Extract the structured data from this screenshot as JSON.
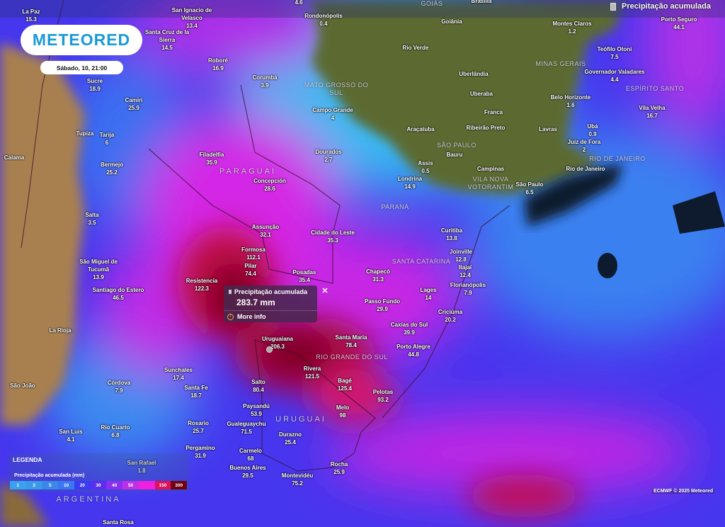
{
  "header": {
    "layer_title": "Precipitação acumulada",
    "layer_icon": "rain-gauge-icon"
  },
  "logo": {
    "text": "METEORED"
  },
  "datetime": "Sábado, 10, 21:00",
  "popup": {
    "title": "Precipitação acumulada",
    "value": "283.7 mm",
    "more_info": "More info",
    "close": "✕"
  },
  "legend": {
    "title": "LEGENDA",
    "subtitle": "Precipitação acumulada (mm)",
    "steps": [
      {
        "label": "1",
        "color": "#3aa0f0"
      },
      {
        "label": "3",
        "color": "#3a9ae8"
      },
      {
        "label": "5",
        "color": "#3a88e8"
      },
      {
        "label": "10",
        "color": "#3a78f0"
      },
      {
        "label": "20",
        "color": "#3a3cf0"
      },
      {
        "label": "30",
        "color": "#5a2ff0"
      },
      {
        "label": "40",
        "color": "#8a2ff0"
      },
      {
        "label": "50",
        "color": "#c02fe8"
      },
      {
        "label": "",
        "color": "#f020e0"
      },
      {
        "label": "150",
        "color": "#e0105a"
      },
      {
        "label": "300",
        "color": "#700010"
      }
    ]
  },
  "credit": "ECMWF © 2025 Meteored",
  "regions": [
    "GOIÁS",
    "MATO GROSSO DO\nSUL",
    "SÃO PAULO",
    "MINAS GERAIS",
    "ESPÍRITO SANTO",
    "RIO DE JANEIRO",
    "VILA NOVA\nVOTORANTIM",
    "PARANÁ",
    "SANTA CATARINA",
    "RIO GRANDE DO SUL",
    "PARAGUAI",
    "URUGUAI",
    "ARGENTINA"
  ],
  "cities": [
    {
      "name": "La Paz",
      "value": "15.3"
    },
    {
      "name": "San Ignacio de\nVelasco",
      "value": "13.4"
    },
    {
      "name": "",
      "value": "4.6"
    },
    {
      "name": "Rondonópolis",
      "value": "0.4"
    },
    {
      "name": "Brasília",
      "value": ""
    },
    {
      "name": "Goiânia",
      "value": ""
    },
    {
      "name": "Rio Verde",
      "value": ""
    },
    {
      "name": "Uberlândia",
      "value": ""
    },
    {
      "name": "Uberaba",
      "value": ""
    },
    {
      "name": "Franca",
      "value": ""
    },
    {
      "name": "Ribeirão Preto",
      "value": ""
    },
    {
      "name": "Lavras",
      "value": ""
    },
    {
      "name": "Araçatuba",
      "value": ""
    },
    {
      "name": "Bauru",
      "value": ""
    },
    {
      "name": "Assis",
      "value": "0.5"
    },
    {
      "name": "Campinas",
      "value": ""
    },
    {
      "name": "Londrina",
      "value": "14.9"
    },
    {
      "name": "São Paulo",
      "value": "6.5"
    },
    {
      "name": "Rio de Janeiro",
      "value": ""
    },
    {
      "name": "Juiz de Fora",
      "value": "2"
    },
    {
      "name": "Ubá",
      "value": "0.9"
    },
    {
      "name": "Belo Horizonte",
      "value": "1.6"
    },
    {
      "name": "Montes Claros",
      "value": "1.2"
    },
    {
      "name": "Teófilo Otoni",
      "value": "7.5"
    },
    {
      "name": "Governador Valadares",
      "value": "4.4"
    },
    {
      "name": "Vila Velha",
      "value": "16.7"
    },
    {
      "name": "Porto Seguro",
      "value": "44.1"
    },
    {
      "name": "Campo Grande",
      "value": "4"
    },
    {
      "name": "Dourados",
      "value": "2.7"
    },
    {
      "name": "Curitiba",
      "value": "13.8"
    },
    {
      "name": "Joinville",
      "value": "12.8"
    },
    {
      "name": "Itajaí",
      "value": "12.4"
    },
    {
      "name": "Florianópolis",
      "value": "7.9"
    },
    {
      "name": "Chapecó",
      "value": "31.3"
    },
    {
      "name": "Lages",
      "value": "14"
    },
    {
      "name": "Passo Fundo",
      "value": "29.9"
    },
    {
      "name": "Criciúma",
      "value": "20.2"
    },
    {
      "name": "Caxias do Sul",
      "value": "39.9"
    },
    {
      "name": "Porto Alegre",
      "value": "44.8"
    },
    {
      "name": "Santa Maria",
      "value": "78.4"
    },
    {
      "name": "Uruguaiana",
      "value": "206.3"
    },
    {
      "name": "Rivera",
      "value": "121.5"
    },
    {
      "name": "Bagé",
      "value": "125.4"
    },
    {
      "name": "Pelotas",
      "value": "93.2"
    },
    {
      "name": "Melo",
      "value": "98"
    },
    {
      "name": "Salto",
      "value": "80.4"
    },
    {
      "name": "Paysandú",
      "value": "53.9"
    },
    {
      "name": "Gualeguaychu",
      "value": "71.5"
    },
    {
      "name": "Durazno",
      "value": "25.4"
    },
    {
      "name": "Carmelo",
      "value": "68"
    },
    {
      "name": "Buenos Aires",
      "value": "29.5"
    },
    {
      "name": "Rocha",
      "value": "25.9"
    },
    {
      "name": "Montevidéu",
      "value": "75.2"
    },
    {
      "name": "Pergamino",
      "value": "31.9"
    },
    {
      "name": "Rosario",
      "value": "25.7"
    },
    {
      "name": "Santa Fe",
      "value": "18.7"
    },
    {
      "name": "Sunchales",
      "value": "17.4"
    },
    {
      "name": "Córdova",
      "value": "7.9"
    },
    {
      "name": "Rio Cuarto",
      "value": "6.8"
    },
    {
      "name": "San Luis",
      "value": "4.1"
    },
    {
      "name": "São João",
      "value": ""
    },
    {
      "name": "La Rioja",
      "value": ""
    },
    {
      "name": "Santiago do Estero",
      "value": "46.5"
    },
    {
      "name": "São Miguel de\nTucumã",
      "value": "13.9"
    },
    {
      "name": "Salta",
      "value": "3.5"
    },
    {
      "name": "Bermejo",
      "value": "25.2"
    },
    {
      "name": "Tupiza",
      "value": ""
    },
    {
      "name": "Tarija",
      "value": "6"
    },
    {
      "name": "Calama",
      "value": ""
    },
    {
      "name": "Sucre",
      "value": "18.9"
    },
    {
      "name": "Camiri",
      "value": "25.9"
    },
    {
      "name": "Santa Cruz de la\nSierra",
      "value": "14.5"
    },
    {
      "name": "Roboré",
      "value": "16.9"
    },
    {
      "name": "Corumbá",
      "value": "3.9"
    },
    {
      "name": "Filadelfia",
      "value": "35.9"
    },
    {
      "name": "Concepción",
      "value": "28.6"
    },
    {
      "name": "Assunção",
      "value": "32.1"
    },
    {
      "name": "Cidade do Leste",
      "value": "35.3"
    },
    {
      "name": "Formosa",
      "value": "112.1"
    },
    {
      "name": "Pilar",
      "value": "74.4"
    },
    {
      "name": "Resistencia",
      "value": "122.3"
    },
    {
      "name": "Posadas",
      "value": "35.4"
    },
    {
      "name": "San Rafael",
      "value": "1.8"
    },
    {
      "name": "Santa Rosa",
      "value": ""
    }
  ]
}
